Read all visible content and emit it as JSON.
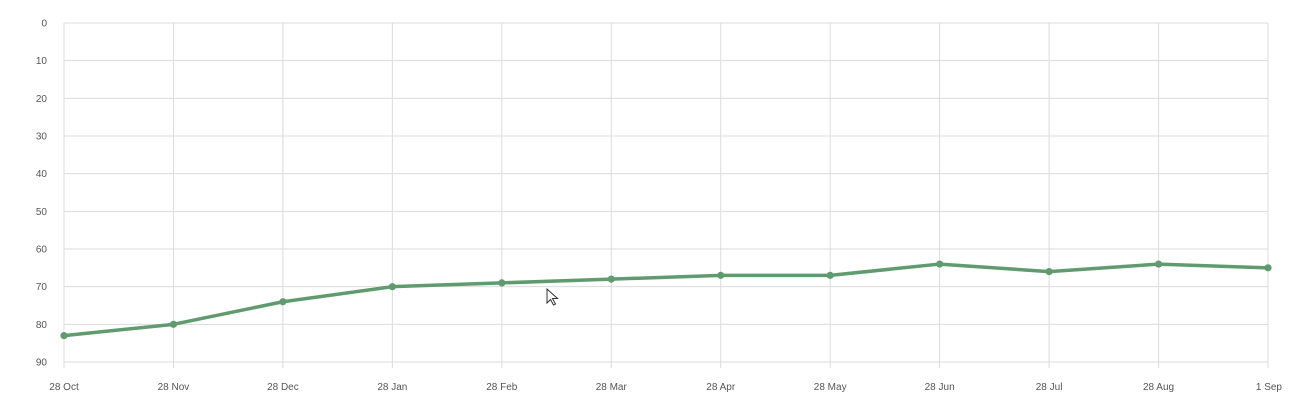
{
  "chart_data": {
    "type": "line",
    "title": "",
    "xlabel": "",
    "ylabel": "",
    "x": [
      "28 Oct",
      "28 Nov",
      "28 Dec",
      "28 Jan",
      "28 Feb",
      "28 Mar",
      "28 Apr",
      "28 May",
      "28 Jun",
      "28 Jul",
      "28 Aug",
      "1 Sep"
    ],
    "series": [
      {
        "values": [
          83,
          80,
          74,
          70,
          69,
          68,
          67,
          67,
          64,
          66,
          64,
          65
        ]
      }
    ],
    "y_ticks": [
      "0",
      "10",
      "20",
      "30",
      "40",
      "50",
      "60",
      "70",
      "80",
      "90"
    ],
    "ylim": [
      0,
      90
    ],
    "y_reversed": true,
    "grid": true,
    "legend": "none",
    "colors": {
      "series": "#5f9b6e",
      "grid": "#dcdcdc",
      "tick_text": "#555555"
    }
  },
  "cursor": {
    "icon": "mouse-pointer-icon"
  }
}
